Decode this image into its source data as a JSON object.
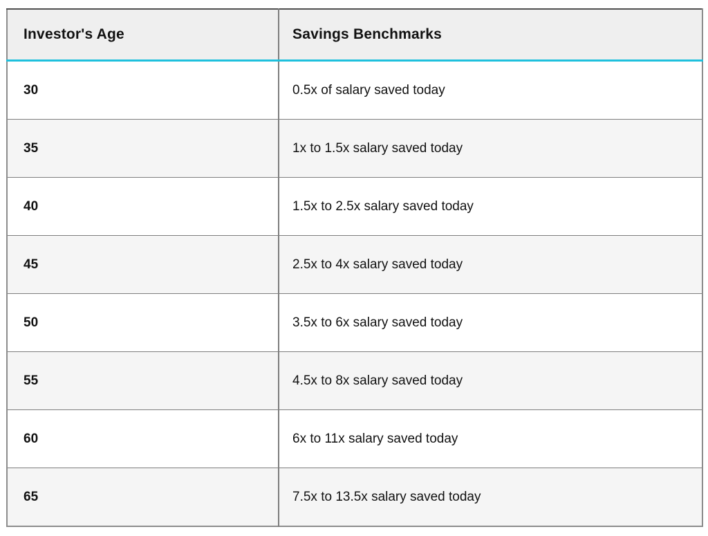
{
  "chart_data": {
    "type": "table",
    "columns": [
      "Investor's Age",
      "Savings Benchmarks"
    ],
    "rows": [
      [
        "30",
        "0.5x of salary saved today"
      ],
      [
        "35",
        "1x to 1.5x salary saved today"
      ],
      [
        "40",
        "1.5x to 2.5x salary saved today"
      ],
      [
        "45",
        "2.5x to 4x salary saved today"
      ],
      [
        "50",
        "3.5x to 6x salary saved today"
      ],
      [
        "55",
        "4.5x to 8x salary saved today"
      ],
      [
        "60",
        "6x to 11x salary saved today"
      ],
      [
        "65",
        "7.5x to 13.5x salary saved today"
      ]
    ],
    "layout": {
      "header_row": true,
      "alternating_rows": true,
      "grid": "full"
    }
  },
  "colors": {
    "accent": "#1ec0dd",
    "header_bg": "#efefef",
    "row_bg": "#ffffff",
    "row_alt_bg": "#f5f5f5",
    "border_outer": "#8c8c8c",
    "border_top": "#4f4f4f",
    "border_inner": "#7d7d7d",
    "text": "#111111"
  }
}
